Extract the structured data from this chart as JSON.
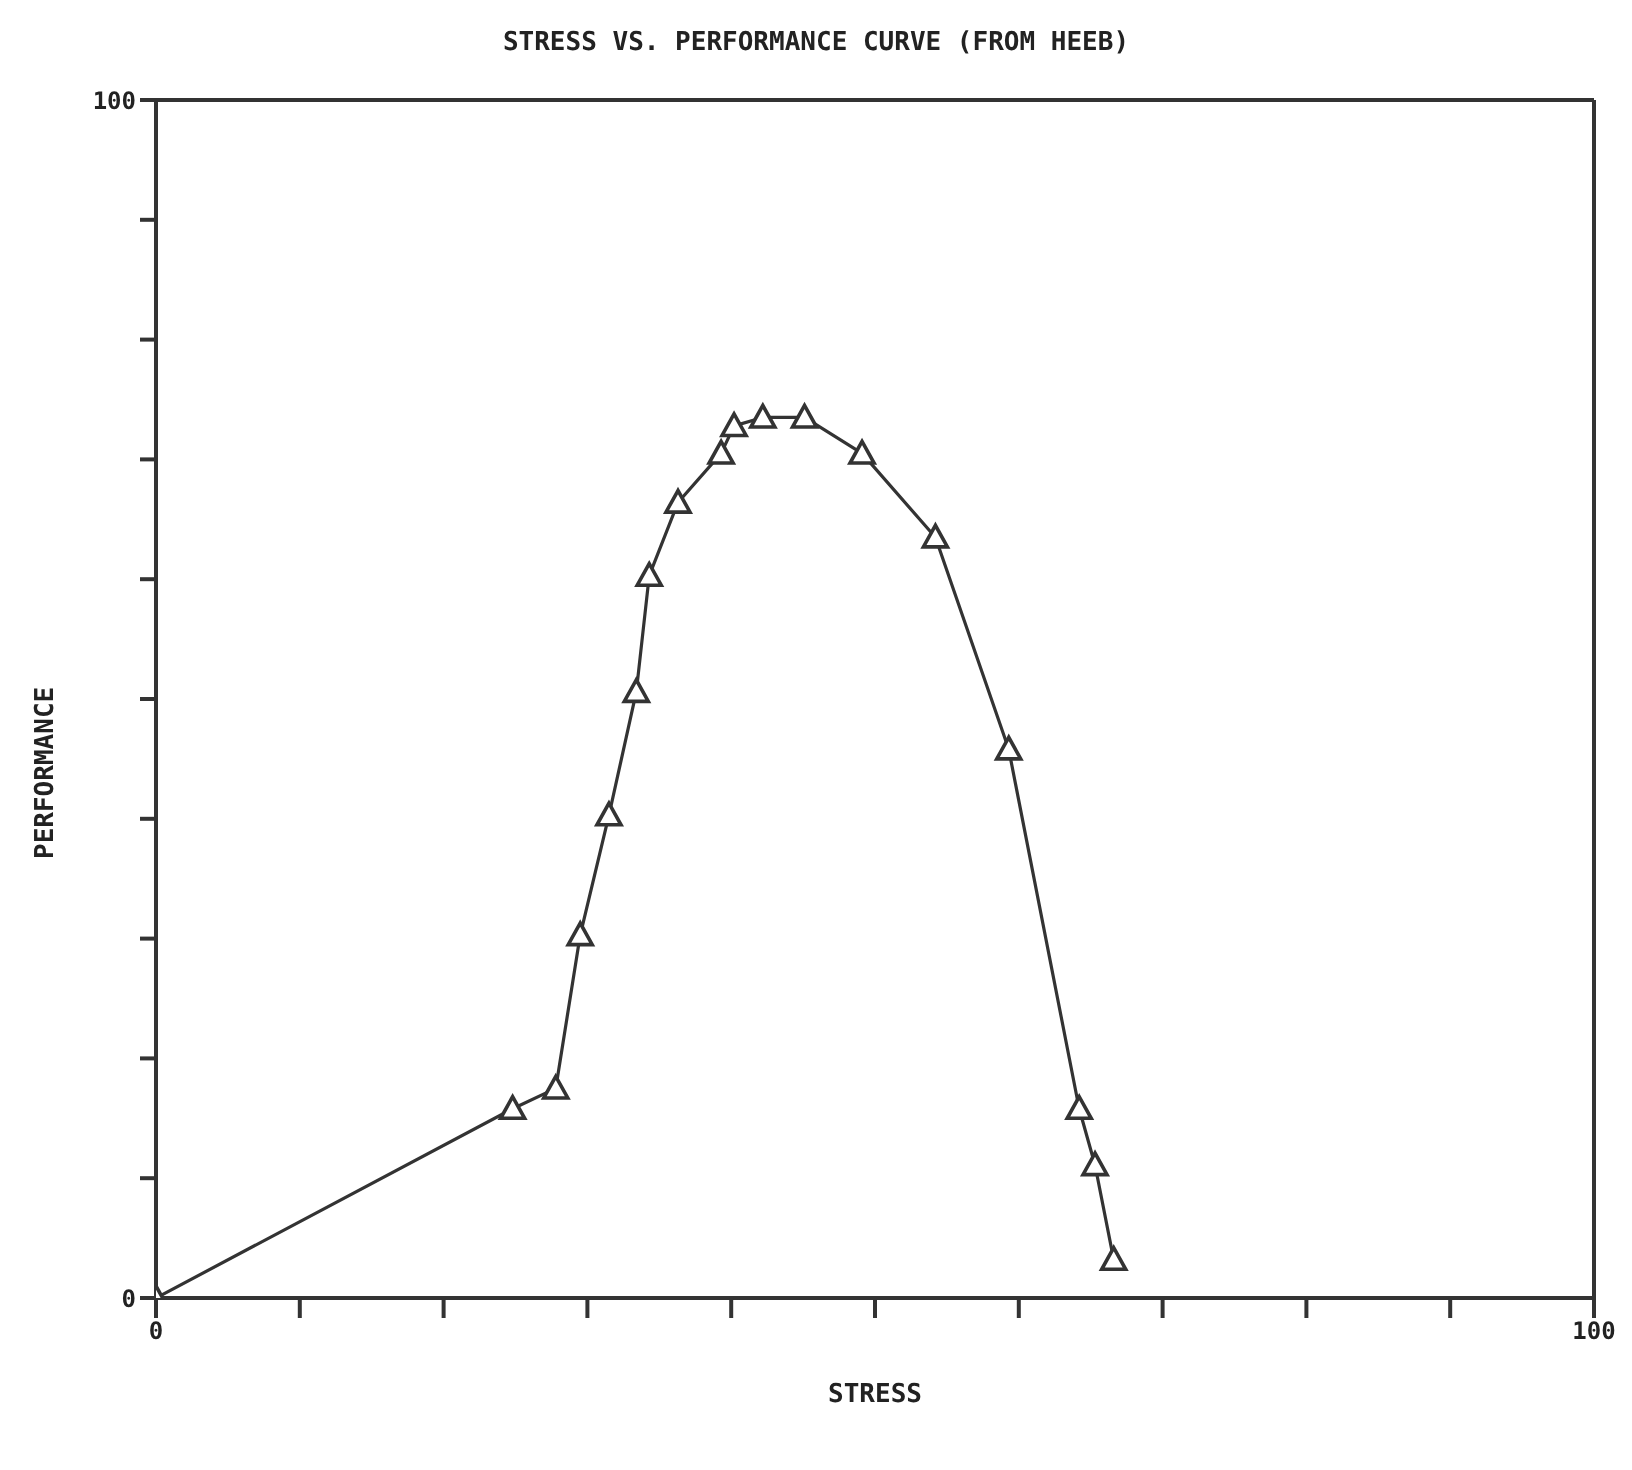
{
  "chart_data": {
    "type": "line",
    "title": "STRESS VS. PERFORMANCE CURVE (FROM HEEB)",
    "xlabel": "STRESS",
    "ylabel": "PERFORMANCE",
    "x": [
      0,
      24.8,
      27.8,
      29.5,
      31.5,
      33.4,
      34.3,
      36.3,
      39.3,
      40.2,
      42.2,
      45.1,
      49.1,
      54.2,
      59.3,
      64.2,
      65.3,
      66.6
    ],
    "series": [
      {
        "color": "#333333",
        "values": [
          0,
          15.8,
          17.5,
          30.3,
          40.3,
          50.6,
          60.3,
          66.4,
          70.5,
          72.8,
          73.5,
          73.5,
          70.5,
          63.5,
          45.8,
          15.8,
          11.1,
          3.2
        ]
      }
    ],
    "xlim": [
      0,
      100
    ],
    "ylim": [
      0,
      100
    ],
    "xticks": [
      0,
      {
        "value": 10,
        "label": null
      },
      {
        "value": 20,
        "label": null
      },
      {
        "value": 30,
        "label": null
      },
      {
        "value": 40,
        "label": null
      },
      {
        "value": 50,
        "label": null
      },
      {
        "value": 60,
        "label": null
      },
      {
        "value": 70,
        "label": null
      },
      {
        "value": 80,
        "label": null
      },
      {
        "value": 90,
        "label": null
      },
      100
    ],
    "yticks": [
      0,
      {
        "value": 10,
        "label": null
      },
      {
        "value": 20,
        "label": null
      },
      {
        "value": 30,
        "label": null
      },
      {
        "value": 40,
        "label": null
      },
      {
        "value": 50,
        "label": null
      },
      {
        "value": 60,
        "label": null
      },
      {
        "value": 70,
        "label": null
      },
      {
        "value": 80,
        "label": null
      },
      {
        "value": 90,
        "label": null
      },
      100
    ],
    "grid": false,
    "legend": false,
    "marker": "triangle",
    "line_style": "solid"
  }
}
